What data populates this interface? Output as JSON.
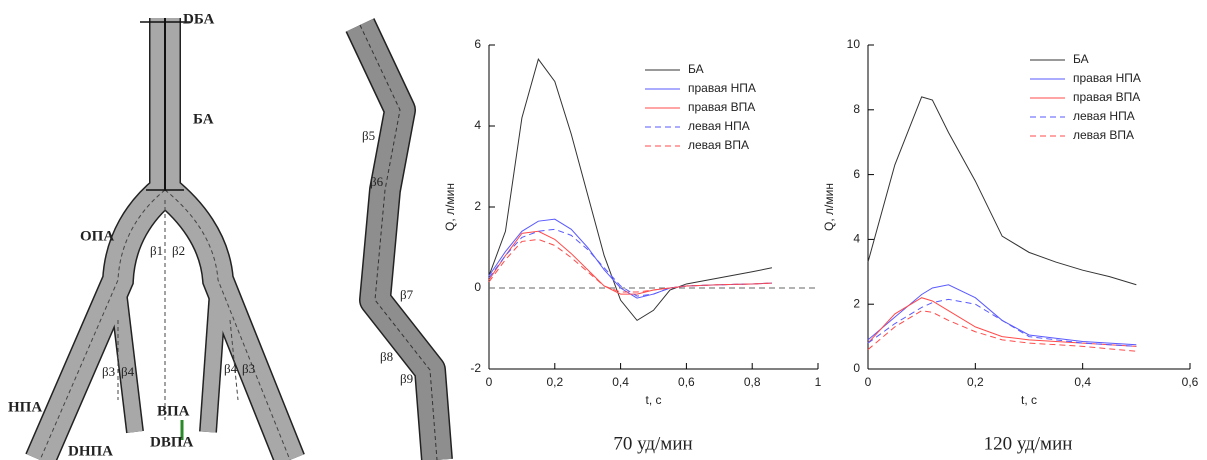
{
  "diagram": {
    "labels": [
      "DБА",
      "БА",
      "ОПА",
      "β1",
      "β2",
      "β3",
      "β4",
      "β4",
      "β3",
      "ВПА",
      "НПА",
      "DВПА",
      "DНПА",
      "β5",
      "β6",
      "β7",
      "β8",
      "β9"
    ]
  },
  "chart_data": [
    {
      "type": "line",
      "caption": "70 уд/мин",
      "xlabel": "t, с",
      "ylabel": "Q, л/мин",
      "x": [
        0,
        0.05,
        0.1,
        0.15,
        0.2,
        0.25,
        0.3,
        0.35,
        0.4,
        0.45,
        0.5,
        0.55,
        0.6,
        0.7,
        0.8,
        0.86
      ],
      "xlim": [
        0,
        1
      ],
      "xticks": [
        0,
        {
          "value": 0.2,
          "label": "0,2"
        },
        {
          "value": 0.4,
          "label": "0,4"
        },
        {
          "value": 0.6,
          "label": "0,6"
        },
        {
          "value": 0.8,
          "label": "0,8"
        },
        1
      ],
      "ylim": [
        -2,
        6
      ],
      "yticks": [
        -2,
        0,
        2,
        4,
        6
      ],
      "reference_line": 0,
      "series": [
        {
          "name": "БА",
          "color": "#333333",
          "dashed": false,
          "values": [
            0.3,
            1.4,
            4.2,
            5.65,
            5.1,
            3.8,
            2.3,
            0.8,
            -0.3,
            -0.8,
            -0.55,
            -0.05,
            0.1,
            0.25,
            0.4,
            0.5
          ]
        },
        {
          "name": "правая НПА",
          "color": "#5a5aff",
          "dashed": false,
          "values": [
            0.3,
            0.9,
            1.4,
            1.65,
            1.7,
            1.45,
            1.0,
            0.45,
            0.0,
            -0.25,
            -0.15,
            0.0,
            0.05,
            0.08,
            0.1,
            0.12
          ]
        },
        {
          "name": "правая ВПА",
          "color": "#ff4b4b",
          "dashed": false,
          "values": [
            0.2,
            0.8,
            1.35,
            1.4,
            1.2,
            0.85,
            0.45,
            0.05,
            -0.15,
            -0.15,
            -0.05,
            0.0,
            0.05,
            0.08,
            0.1,
            0.12
          ]
        },
        {
          "name": "левая НПА",
          "color": "#5a5aff",
          "dashed": true,
          "values": [
            0.25,
            0.8,
            1.25,
            1.4,
            1.45,
            1.3,
            0.95,
            0.5,
            0.05,
            -0.2,
            -0.15,
            0.0,
            0.05,
            0.08,
            0.1,
            0.12
          ]
        },
        {
          "name": "левая ВПА",
          "color": "#ff4b4b",
          "dashed": true,
          "values": [
            0.15,
            0.7,
            1.15,
            1.2,
            1.05,
            0.75,
            0.4,
            0.05,
            -0.1,
            -0.1,
            -0.05,
            0.0,
            0.05,
            0.08,
            0.1,
            0.12
          ]
        }
      ]
    },
    {
      "type": "line",
      "caption": "120 уд/мин",
      "xlabel": "t, с",
      "ylabel": "Q, л/мин",
      "x": [
        0,
        0.05,
        0.1,
        0.12,
        0.15,
        0.2,
        0.25,
        0.3,
        0.35,
        0.4,
        0.45,
        0.5
      ],
      "xlim": [
        0,
        0.6
      ],
      "xticks": [
        0,
        {
          "value": 0.2,
          "label": "0,2"
        },
        {
          "value": 0.4,
          "label": "0,4"
        },
        {
          "value": 0.6,
          "label": "0,6"
        }
      ],
      "ylim": [
        0,
        10
      ],
      "yticks": [
        0,
        2,
        4,
        6,
        8,
        10
      ],
      "series": [
        {
          "name": "БА",
          "color": "#333333",
          "dashed": false,
          "values": [
            3.3,
            6.3,
            8.4,
            8.3,
            7.3,
            5.8,
            4.1,
            3.6,
            3.3,
            3.05,
            2.85,
            2.6
          ]
        },
        {
          "name": "правая НПА",
          "color": "#5a5aff",
          "dashed": false,
          "values": [
            0.9,
            1.6,
            2.3,
            2.5,
            2.6,
            2.2,
            1.5,
            1.05,
            0.95,
            0.85,
            0.8,
            0.75
          ]
        },
        {
          "name": "правая ВПА",
          "color": "#ff4b4b",
          "dashed": false,
          "values": [
            0.8,
            1.7,
            2.2,
            2.1,
            1.8,
            1.3,
            1.0,
            0.9,
            0.85,
            0.8,
            0.75,
            0.7
          ]
        },
        {
          "name": "левая НПА",
          "color": "#5a5aff",
          "dashed": true,
          "values": [
            0.8,
            1.4,
            1.9,
            2.05,
            2.15,
            2.0,
            1.5,
            1.0,
            0.9,
            0.8,
            0.75,
            0.7
          ]
        },
        {
          "name": "левая ВПА",
          "color": "#ff4b4b",
          "dashed": true,
          "values": [
            0.6,
            1.3,
            1.8,
            1.75,
            1.5,
            1.15,
            0.9,
            0.8,
            0.75,
            0.7,
            0.62,
            0.55
          ]
        }
      ]
    }
  ]
}
